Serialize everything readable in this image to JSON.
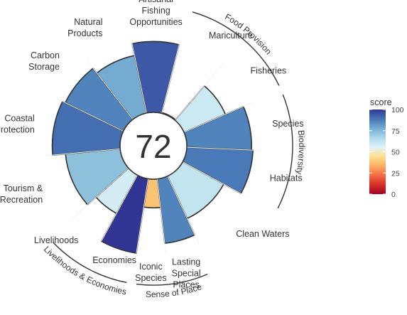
{
  "chart_data": {
    "type": "flower",
    "center_score": "72",
    "score_max": 100,
    "petals": [
      {
        "label": "Carbon Storage",
        "value": 86,
        "weight": 1
      },
      {
        "label": "Natural Products",
        "value": 78,
        "weight": 1
      },
      {
        "label": "Artisanal Fishing Opportunities",
        "value": 94,
        "weight": 1
      },
      {
        "label": "Mariculture",
        "value": 1,
        "weight": 1
      },
      {
        "label": "Fisheries",
        "value": 60,
        "weight": 1
      },
      {
        "label": "Species",
        "value": 86,
        "weight": 1
      },
      {
        "label": "Habitats",
        "value": 88,
        "weight": 1
      },
      {
        "label": "Clean Waters",
        "value": 62,
        "weight": 1.4
      },
      {
        "label": "Lasting Special Places",
        "value": 86,
        "weight": 0.7
      },
      {
        "label": "Iconic Species",
        "value": 38,
        "weight": 0.6
      },
      {
        "label": "Economies",
        "value": 100,
        "weight": 0.75
      },
      {
        "label": "Livelihoods",
        "value": 58,
        "weight": 0.75
      },
      {
        "label": "Tourism & Recreation",
        "value": 73,
        "weight": 1.4
      },
      {
        "label": "Coastal Protection",
        "value": 90,
        "weight": 1.2
      }
    ],
    "groups": [
      {
        "label": "Food Provision"
      },
      {
        "label": "Biodiversity"
      },
      {
        "label": "Sense of Place"
      },
      {
        "label": "Livelihoods & Economies"
      }
    ],
    "legend": {
      "title": "score",
      "ticks": [
        "0",
        "25",
        "50",
        "75",
        "100"
      ],
      "colors": [
        "#a50026",
        "#d73027",
        "#f46d43",
        "#fdae61",
        "#fee090",
        "#e0f3f8",
        "#abd9e9",
        "#74add1",
        "#4575b4",
        "#313695"
      ]
    }
  }
}
